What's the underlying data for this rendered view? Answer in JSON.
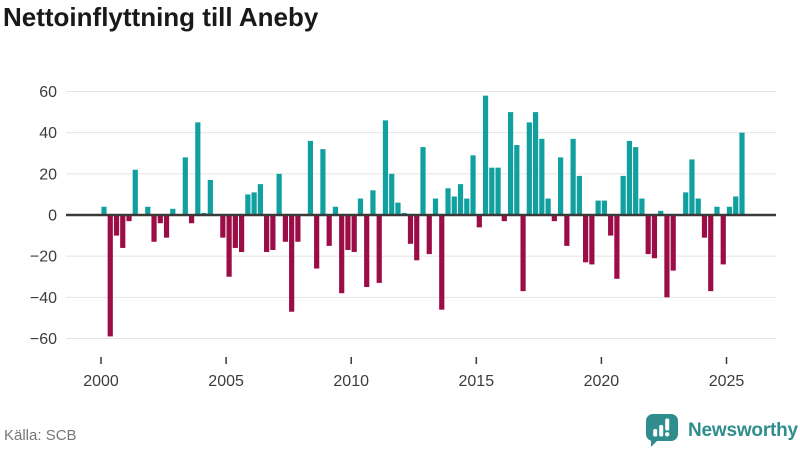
{
  "title": "Nettoinflyttning till Aneby",
  "source": "Källa: SCB",
  "brand": {
    "name": "Newsworthy",
    "color": "#2F8D8D"
  },
  "colors": {
    "background": "#ffffff",
    "title_text": "#191919",
    "axis_text": "#3C3C3C",
    "gridline": "#E4E4E4",
    "zero_line": "#3A3A3A",
    "muted_text": "#767676",
    "positive_bar": "#10A0A0",
    "negative_bar": "#9C0C46"
  },
  "chart_data": {
    "type": "bar",
    "title": "Nettoinflyttning till Aneby",
    "frequency": "quarterly",
    "x_start": "2000 Q1",
    "x_end": "2025 Q3",
    "x_tick_labels": [
      "2000",
      "2005",
      "2010",
      "2015",
      "2020",
      "2025"
    ],
    "y_ticks": [
      -60,
      -40,
      -20,
      0,
      20,
      40,
      60
    ],
    "ylim": [
      -60,
      60
    ],
    "grid": true,
    "legend": false,
    "positive_color": "#10A0A0",
    "negative_color": "#9C0C46",
    "values": [
      4,
      -59,
      -10,
      -16,
      -3,
      22,
      0,
      4,
      -13,
      -4,
      -11,
      3,
      0,
      28,
      -4,
      45,
      1,
      17,
      0,
      -11,
      -30,
      -16,
      -18,
      10,
      11,
      15,
      -18,
      -17,
      20,
      -13,
      -47,
      -13,
      0,
      36,
      -26,
      32,
      -15,
      4,
      -38,
      -17,
      -18,
      8,
      -35,
      12,
      -33,
      46,
      20,
      6,
      1,
      -14,
      -22,
      33,
      -19,
      8,
      -46,
      13,
      9,
      15,
      8,
      29,
      -6,
      58,
      23,
      23,
      -3,
      50,
      34,
      -37,
      45,
      50,
      37,
      8,
      -3,
      28,
      -15,
      37,
      19,
      -23,
      -24,
      7,
      7,
      -10,
      -31,
      19,
      36,
      33,
      8,
      -19,
      -21,
      2,
      -40,
      -27,
      0,
      11,
      27,
      8,
      -11,
      -37,
      4,
      -24,
      4,
      9,
      40
    ]
  }
}
